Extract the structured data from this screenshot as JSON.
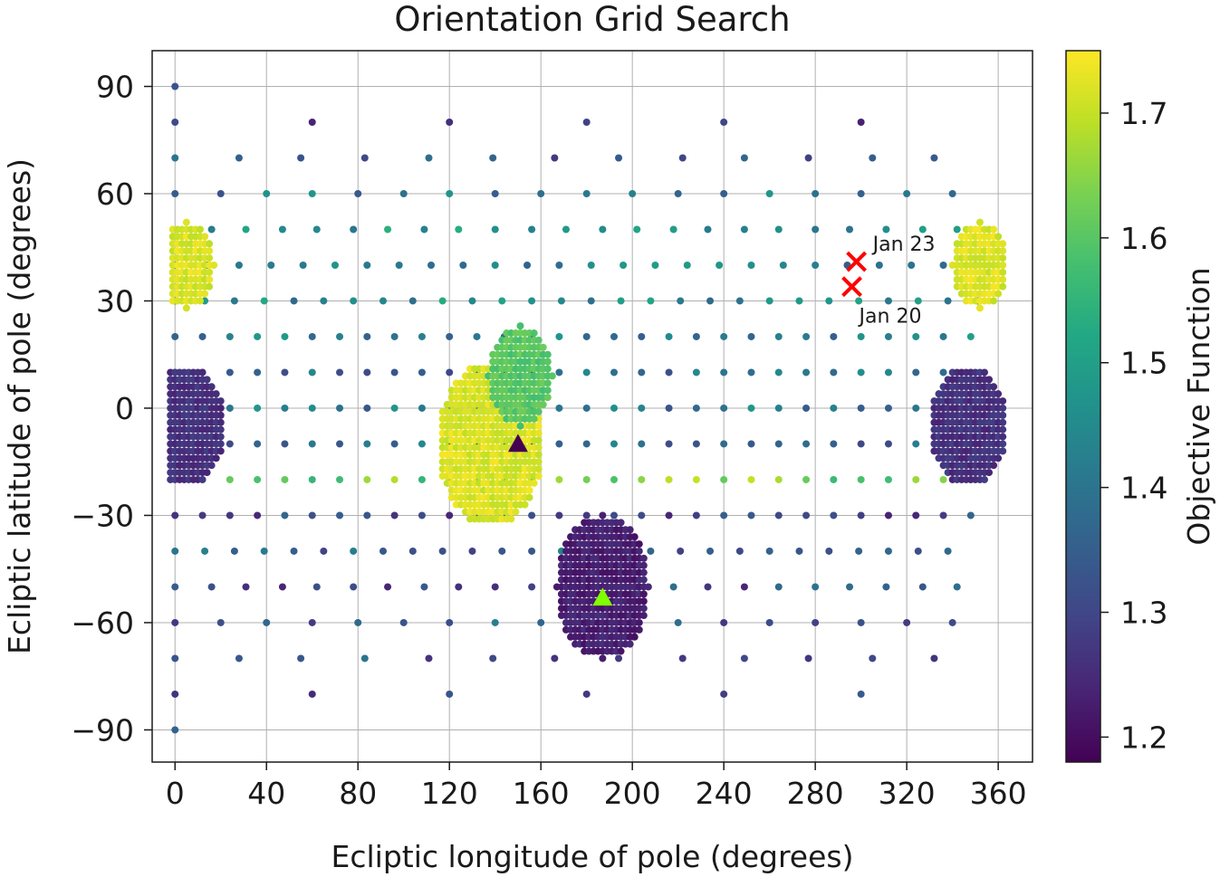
{
  "chart_data": {
    "type": "scatter",
    "title": "Orientation Grid Search",
    "xlabel": "Ecliptic longitude of pole (degrees)",
    "ylabel": "Ecliptic latitude of pole (degrees)",
    "xlim": [
      -10,
      375
    ],
    "ylim": [
      -99,
      100
    ],
    "xticks": [
      0,
      40,
      80,
      120,
      160,
      200,
      240,
      280,
      320,
      360
    ],
    "yticks": [
      -90,
      -60,
      -30,
      0,
      30,
      60,
      90
    ],
    "xtick_labels": [
      "0",
      "40",
      "80",
      "120",
      "160",
      "200",
      "240",
      "280",
      "320",
      "360"
    ],
    "ytick_labels": [
      "−90",
      "−60",
      "−30",
      "0",
      "30",
      "60",
      "90"
    ],
    "grid": true,
    "colormap": "viridis",
    "colorbar": {
      "label": "Objective Function",
      "range": [
        1.18,
        1.75
      ],
      "ticks": [
        1.2,
        1.3,
        1.4,
        1.5,
        1.6,
        1.7
      ],
      "tick_labels": [
        "1.2",
        "1.3",
        "1.4",
        "1.5",
        "1.6",
        "1.7"
      ]
    },
    "coarse_grid": {
      "description_rows": [
        {
          "lat": 90,
          "lons": [
            0
          ],
          "value": 1.33
        },
        {
          "lat": 80,
          "lons": [
            0,
            60,
            120,
            180,
            240,
            300
          ],
          "value": 1.3
        },
        {
          "lat": 70,
          "lons": [
            0,
            28,
            55,
            83,
            111,
            139,
            166,
            194,
            222,
            249,
            277,
            305,
            332
          ],
          "value": 1.34
        },
        {
          "lat": 60,
          "lons": [
            0,
            20,
            40,
            60,
            80,
            100,
            120,
            140,
            160,
            180,
            200,
            220,
            240,
            260,
            280,
            300,
            320,
            340
          ],
          "value": 1.4
        },
        {
          "lat": 50,
          "lons": [
            16,
            31,
            47,
            62,
            78,
            93,
            109,
            124,
            140,
            156,
            171,
            187,
            202,
            218,
            233,
            249,
            264,
            280,
            295,
            311,
            327,
            342
          ],
          "value": 1.47
        },
        {
          "lat": 40,
          "lons": [
            0,
            14,
            28,
            42,
            56,
            70,
            84,
            98,
            112,
            126,
            140,
            154,
            168,
            182,
            196,
            210,
            224,
            238,
            252,
            266,
            280,
            294,
            308,
            322,
            336,
            350
          ],
          "value": 1.42
        },
        {
          "lat": 30,
          "lons": [
            0,
            13,
            26,
            39,
            52,
            65,
            78,
            91,
            104,
            117,
            130,
            143,
            156,
            169,
            182,
            195,
            208,
            221,
            234,
            247,
            260,
            273,
            286,
            299,
            312,
            325,
            338,
            351
          ],
          "value": 1.45
        },
        {
          "lat": 20,
          "lons": [
            0,
            12,
            24,
            36,
            48,
            60,
            72,
            84,
            96,
            108,
            120,
            132,
            144,
            156,
            168,
            180,
            192,
            204,
            216,
            228,
            240,
            252,
            264,
            276,
            288,
            300,
            312,
            324,
            336,
            348
          ],
          "value": 1.43
        },
        {
          "lat": 10,
          "lons": [
            0,
            12,
            24,
            36,
            48,
            60,
            72,
            84,
            96,
            108,
            120,
            132,
            144,
            156,
            168,
            180,
            192,
            204,
            216,
            228,
            240,
            252,
            264,
            276,
            288,
            300,
            312,
            324,
            336,
            348
          ],
          "value": 1.38
        },
        {
          "lat": 0,
          "lons": [
            0,
            12,
            24,
            36,
            48,
            60,
            72,
            84,
            96,
            108,
            120,
            132,
            144,
            156,
            168,
            180,
            192,
            204,
            216,
            228,
            240,
            252,
            264,
            276,
            288,
            300,
            312,
            324,
            336,
            348
          ],
          "value": 1.4
        },
        {
          "lat": -10,
          "lons": [
            0,
            12,
            24,
            36,
            48,
            60,
            72,
            84,
            96,
            108,
            120,
            132,
            144,
            156,
            168,
            180,
            192,
            204,
            216,
            228,
            240,
            252,
            264,
            276,
            288,
            300,
            312,
            324,
            336,
            348
          ],
          "value": 1.38
        },
        {
          "lat": -20,
          "lons": [
            0,
            12,
            24,
            36,
            48,
            60,
            72,
            84,
            96,
            108,
            120,
            132,
            144,
            156,
            168,
            180,
            192,
            204,
            216,
            228,
            240,
            252,
            264,
            276,
            288,
            300,
            312,
            324,
            336,
            348
          ],
          "value": 1.63
        },
        {
          "lat": -30,
          "lons": [
            0,
            12,
            24,
            36,
            48,
            60,
            72,
            84,
            96,
            108,
            120,
            132,
            144,
            156,
            168,
            180,
            192,
            204,
            216,
            228,
            240,
            252,
            264,
            276,
            288,
            300,
            312,
            324,
            336,
            348
          ],
          "value": 1.3
        },
        {
          "lat": -40,
          "lons": [
            0,
            13,
            26,
            39,
            52,
            65,
            78,
            91,
            104,
            117,
            130,
            143,
            156,
            169,
            182,
            195,
            208,
            221,
            234,
            247,
            260,
            273,
            286,
            299,
            312,
            325,
            338
          ],
          "value": 1.36
        },
        {
          "lat": -50,
          "lons": [
            0,
            16,
            31,
            47,
            62,
            78,
            93,
            109,
            124,
            140,
            156,
            171,
            187,
            202,
            218,
            233,
            249,
            264,
            280,
            295,
            311,
            327,
            342
          ],
          "value": 1.32
        },
        {
          "lat": -60,
          "lons": [
            0,
            20,
            40,
            60,
            80,
            100,
            120,
            140,
            160,
            180,
            200,
            220,
            240,
            260,
            280,
            300,
            320,
            340
          ],
          "value": 1.35
        },
        {
          "lat": -70,
          "lons": [
            0,
            28,
            55,
            83,
            111,
            139,
            166,
            194,
            222,
            249,
            277,
            305,
            332
          ],
          "value": 1.33
        },
        {
          "lat": -80,
          "lons": [
            0,
            60,
            120,
            180,
            240,
            300
          ],
          "value": 1.28
        },
        {
          "lat": -90,
          "lons": [
            0
          ],
          "value": 1.33
        }
      ]
    },
    "refined_clusters": [
      {
        "center_lon": 5,
        "center_lat": 40,
        "radius_deg": 12,
        "value": 1.72,
        "step_deg": 2
      },
      {
        "center_lon": 352,
        "center_lat": 40,
        "radius_deg": 12,
        "value": 1.72,
        "step_deg": 2
      },
      {
        "center_lon": 5,
        "center_lat": -5,
        "radius_deg": 17,
        "value": 1.26,
        "step_deg": 2
      },
      {
        "center_lon": 347,
        "center_lat": -5,
        "radius_deg": 17,
        "value": 1.26,
        "step_deg": 2
      },
      {
        "center_lon": 138,
        "center_lat": -10,
        "radius_deg": 23,
        "value": 1.72,
        "step_deg": 2
      },
      {
        "center_lon": 151,
        "center_lat": 9,
        "radius_deg": 14,
        "value": 1.6,
        "step_deg": 2
      },
      {
        "center_lon": 187,
        "center_lat": -50,
        "radius_deg": 20,
        "value": 1.23,
        "step_deg": 2
      }
    ],
    "markers": [
      {
        "type": "triangle",
        "lon": 150,
        "lat": -10,
        "color": "#440154"
      },
      {
        "type": "triangle",
        "lon": 187,
        "lat": -53,
        "color": "#7fff00"
      },
      {
        "type": "x",
        "lon": 298,
        "lat": 41,
        "color": "#ff0000",
        "label": "Jan 23"
      },
      {
        "type": "x",
        "lon": 296,
        "lat": 34,
        "color": "#ff0000",
        "label": "Jan 20"
      }
    ]
  }
}
